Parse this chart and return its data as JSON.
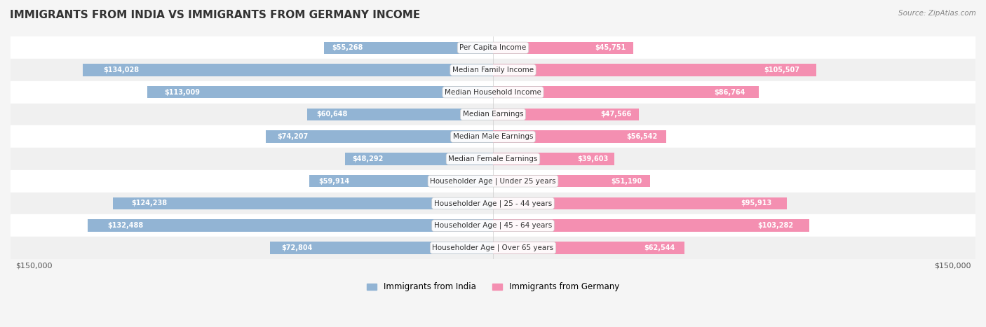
{
  "title": "IMMIGRANTS FROM INDIA VS IMMIGRANTS FROM GERMANY INCOME",
  "source": "Source: ZipAtlas.com",
  "categories": [
    "Per Capita Income",
    "Median Family Income",
    "Median Household Income",
    "Median Earnings",
    "Median Male Earnings",
    "Median Female Earnings",
    "Householder Age | Under 25 years",
    "Householder Age | 25 - 44 years",
    "Householder Age | 45 - 64 years",
    "Householder Age | Over 65 years"
  ],
  "india_values": [
    55268,
    134028,
    113009,
    60648,
    74207,
    48292,
    59914,
    124238,
    132488,
    72804
  ],
  "germany_values": [
    45751,
    105507,
    86764,
    47566,
    56542,
    39603,
    51190,
    95913,
    103282,
    62544
  ],
  "india_labels": [
    "$55,268",
    "$134,028",
    "$113,009",
    "$60,648",
    "$74,207",
    "$48,292",
    "$59,914",
    "$124,238",
    "$132,488",
    "$72,804"
  ],
  "germany_labels": [
    "$45,751",
    "$105,507",
    "$86,764",
    "$47,566",
    "$56,542",
    "$39,603",
    "$51,190",
    "$95,913",
    "$103,282",
    "$62,544"
  ],
  "india_color": "#92b4d4",
  "germany_color": "#f48fb1",
  "india_color_dark": "#6699cc",
  "germany_color_dark": "#f06090",
  "india_label_color_inside": "#ffffff",
  "india_label_color_outside": "#666666",
  "germany_label_color_inside": "#ffffff",
  "germany_label_color_outside": "#666666",
  "bar_height": 0.55,
  "max_value": 150000,
  "background_color": "#f5f5f5",
  "row_bg_light": "#ffffff",
  "row_bg_dark": "#eeeeee",
  "legend_india": "Immigrants from India",
  "legend_germany": "Immigrants from Germany"
}
